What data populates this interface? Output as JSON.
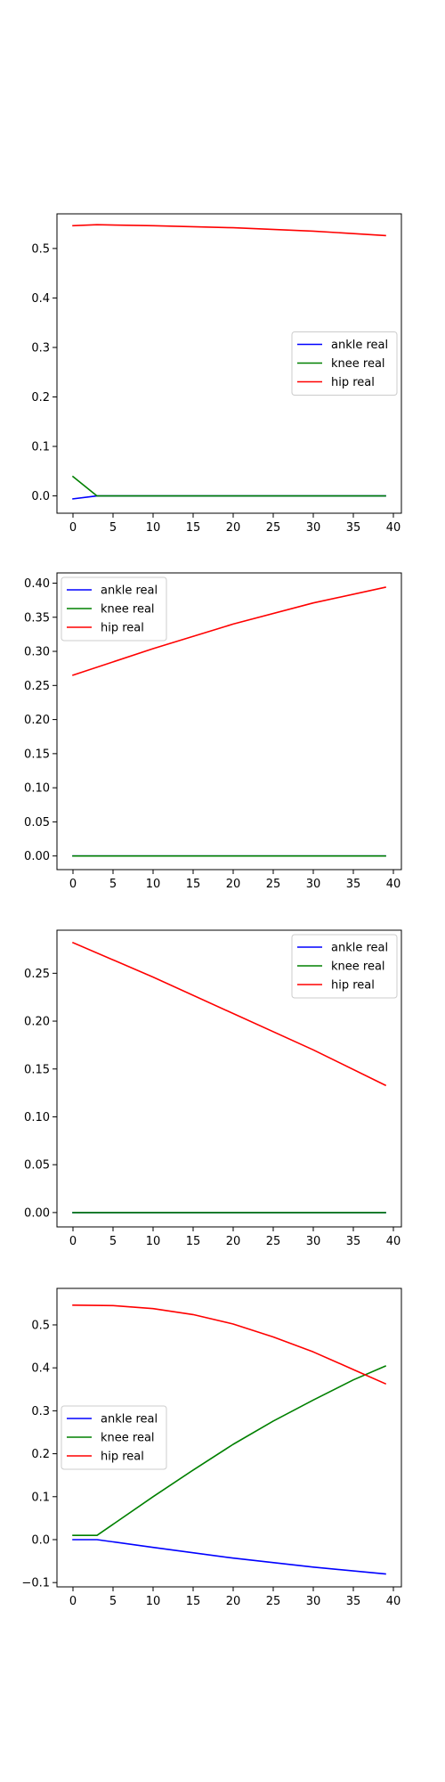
{
  "chart_data": [
    {
      "type": "line",
      "title": "",
      "xlabel": "",
      "ylabel": "",
      "xlim": [
        -2,
        41
      ],
      "ylim": [
        -0.035,
        0.57
      ],
      "xticks": [
        0,
        5,
        10,
        15,
        20,
        25,
        30,
        35,
        40
      ],
      "yticks": [
        0.0,
        0.1,
        0.2,
        0.3,
        0.4,
        0.5
      ],
      "ytick_labels": [
        "0.0",
        "0.1",
        "0.2",
        "0.3",
        "0.4",
        "0.5"
      ],
      "legend_position": "center-right",
      "grid": false,
      "series": [
        {
          "name": "ankle real",
          "color": "#0000ff",
          "x": [
            0,
            3,
            39
          ],
          "y": [
            -0.006,
            0.0,
            0.0
          ]
        },
        {
          "name": "knee real",
          "color": "#008000",
          "x": [
            0,
            3,
            39
          ],
          "y": [
            0.039,
            0.0,
            0.0
          ]
        },
        {
          "name": "hip real",
          "color": "#ff0000",
          "x": [
            0,
            3,
            10,
            20,
            30,
            39
          ],
          "y": [
            0.546,
            0.548,
            0.546,
            0.542,
            0.535,
            0.526
          ]
        }
      ]
    },
    {
      "type": "line",
      "title": "",
      "xlabel": "",
      "ylabel": "",
      "xlim": [
        -2,
        41
      ],
      "ylim": [
        -0.02,
        0.415
      ],
      "xticks": [
        0,
        5,
        10,
        15,
        20,
        25,
        30,
        35,
        40
      ],
      "yticks": [
        0.0,
        0.05,
        0.1,
        0.15,
        0.2,
        0.25,
        0.3,
        0.35,
        0.4
      ],
      "ytick_labels": [
        "0.00",
        "0.05",
        "0.10",
        "0.15",
        "0.20",
        "0.25",
        "0.30",
        "0.35",
        "0.40"
      ],
      "legend_position": "upper-left",
      "grid": false,
      "series": [
        {
          "name": "ankle real",
          "color": "#0000ff",
          "x": [
            0,
            39
          ],
          "y": [
            0.0,
            0.0
          ]
        },
        {
          "name": "knee real",
          "color": "#008000",
          "x": [
            0,
            39
          ],
          "y": [
            0.0,
            0.0
          ]
        },
        {
          "name": "hip real",
          "color": "#ff0000",
          "x": [
            0,
            10,
            20,
            30,
            39
          ],
          "y": [
            0.265,
            0.304,
            0.34,
            0.371,
            0.394
          ]
        }
      ]
    },
    {
      "type": "line",
      "title": "",
      "xlabel": "",
      "ylabel": "",
      "xlim": [
        -2,
        41
      ],
      "ylim": [
        -0.015,
        0.295
      ],
      "xticks": [
        0,
        5,
        10,
        15,
        20,
        25,
        30,
        35,
        40
      ],
      "yticks": [
        0.0,
        0.05,
        0.1,
        0.15,
        0.2,
        0.25
      ],
      "ytick_labels": [
        "0.00",
        "0.05",
        "0.10",
        "0.15",
        "0.20",
        "0.25"
      ],
      "legend_position": "upper-right",
      "grid": false,
      "series": [
        {
          "name": "ankle real",
          "color": "#0000ff",
          "x": [
            0,
            39
          ],
          "y": [
            0.0,
            0.0
          ]
        },
        {
          "name": "knee real",
          "color": "#008000",
          "x": [
            0,
            39
          ],
          "y": [
            0.0,
            0.0
          ]
        },
        {
          "name": "hip real",
          "color": "#ff0000",
          "x": [
            0,
            10,
            20,
            30,
            39
          ],
          "y": [
            0.282,
            0.246,
            0.208,
            0.17,
            0.133
          ]
        }
      ]
    },
    {
      "type": "line",
      "title": "",
      "xlabel": "",
      "ylabel": "",
      "xlim": [
        -2,
        41
      ],
      "ylim": [
        -0.11,
        0.585
      ],
      "xticks": [
        0,
        5,
        10,
        15,
        20,
        25,
        30,
        35,
        40
      ],
      "yticks": [
        -0.1,
        0.0,
        0.1,
        0.2,
        0.3,
        0.4,
        0.5
      ],
      "ytick_labels": [
        "−0.1",
        "0.0",
        "0.1",
        "0.2",
        "0.3",
        "0.4",
        "0.5"
      ],
      "legend_position": "center-left",
      "grid": false,
      "series": [
        {
          "name": "ankle real",
          "color": "#0000ff",
          "x": [
            0,
            3,
            10,
            20,
            30,
            39
          ],
          "y": [
            0.0,
            0.0,
            -0.018,
            -0.043,
            -0.064,
            -0.08
          ]
        },
        {
          "name": "knee real",
          "color": "#008000",
          "x": [
            0,
            3,
            10,
            15,
            20,
            25,
            30,
            35,
            39
          ],
          "y": [
            0.01,
            0.01,
            0.1,
            0.162,
            0.222,
            0.276,
            0.325,
            0.372,
            0.404
          ]
        },
        {
          "name": "hip real",
          "color": "#ff0000",
          "x": [
            0,
            5,
            10,
            15,
            20,
            25,
            30,
            35,
            39
          ],
          "y": [
            0.546,
            0.545,
            0.538,
            0.524,
            0.502,
            0.472,
            0.437,
            0.396,
            0.363
          ]
        }
      ]
    }
  ]
}
